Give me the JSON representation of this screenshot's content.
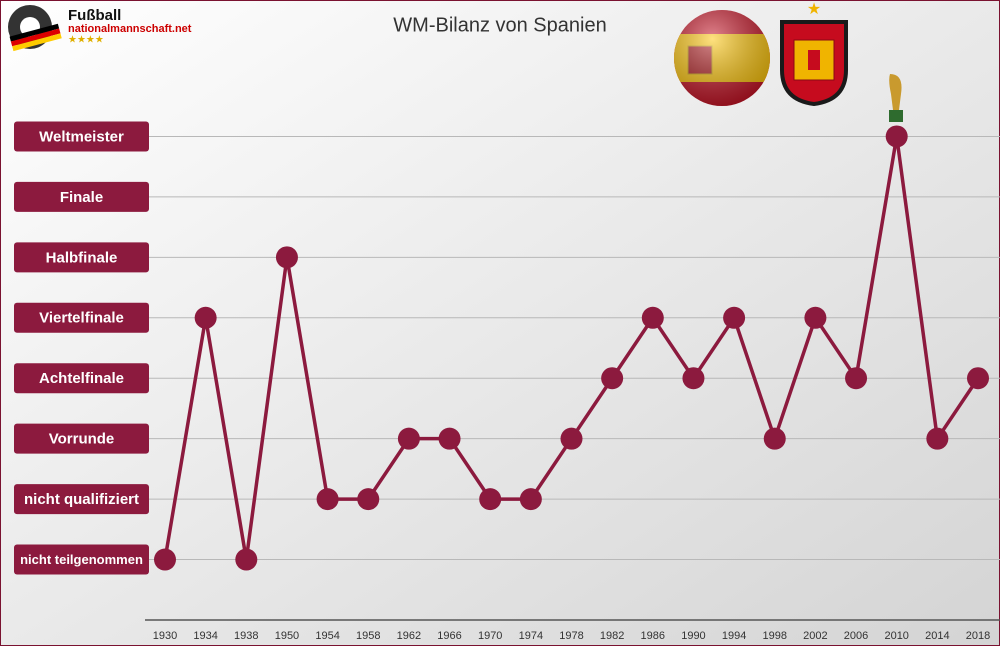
{
  "brand": {
    "name": "Fußball",
    "site": "nationalmannschaft.net"
  },
  "chart_data": {
    "type": "line",
    "title": "WM-Bilanz von Spanien",
    "categories": [
      "1930",
      "1934",
      "1938",
      "1950",
      "1954",
      "1958",
      "1962",
      "1966",
      "1970",
      "1974",
      "1978",
      "1982",
      "1986",
      "1990",
      "1994",
      "1998",
      "2002",
      "2006",
      "2010",
      "2014",
      "2018"
    ],
    "series": [
      {
        "name": "Spanien",
        "color": "#8c1a3e",
        "values": [
          0,
          4,
          0,
          5,
          1,
          1,
          2,
          2,
          1,
          1,
          2,
          3,
          4,
          3,
          4,
          2,
          4,
          3,
          7,
          2,
          3
        ]
      }
    ],
    "ylim": [
      -1,
      8
    ],
    "yticks": [
      {
        "value": 0,
        "label": "nicht teilgenommen"
      },
      {
        "value": 1,
        "label": "nicht qualifiziert"
      },
      {
        "value": 2,
        "label": "Vorrunde"
      },
      {
        "value": 3,
        "label": "Achtelfinale"
      },
      {
        "value": 4,
        "label": "Viertelfinale"
      },
      {
        "value": 5,
        "label": "Halbfinale"
      },
      {
        "value": 6,
        "label": "Finale"
      },
      {
        "value": 7,
        "label": "Weltmeister"
      }
    ],
    "grid": true
  }
}
